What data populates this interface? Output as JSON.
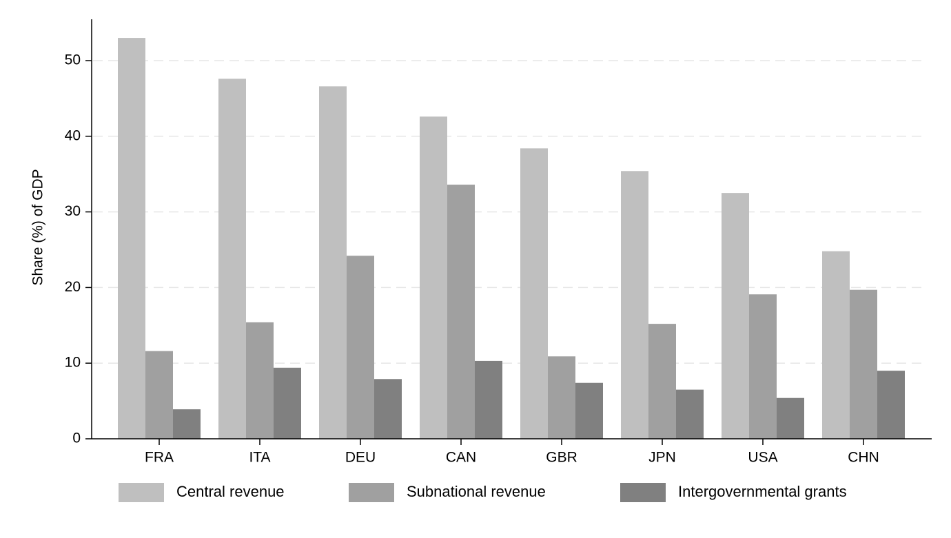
{
  "chart_data": {
    "type": "bar",
    "title": "",
    "xlabel": "",
    "ylabel": "Share (%) of GDP",
    "ylim": [
      0,
      55
    ],
    "yticks": [
      0,
      10,
      20,
      30,
      40,
      50
    ],
    "grid": "horizontal dashed",
    "legend_position": "bottom",
    "categories": [
      "FRA",
      "ITA",
      "DEU",
      "CAN",
      "GBR",
      "JPN",
      "USA",
      "CHN"
    ],
    "series": [
      {
        "name": "Central revenue",
        "color": "#bfbfbf",
        "values": [
          53.0,
          47.6,
          46.6,
          42.6,
          38.4,
          35.4,
          32.5,
          24.8
        ]
      },
      {
        "name": "Subnational revenue",
        "color": "#a0a0a0",
        "values": [
          11.6,
          15.4,
          24.2,
          33.6,
          10.9,
          15.2,
          19.1,
          19.7
        ]
      },
      {
        "name": "Intergovernmental grants",
        "color": "#808080",
        "values": [
          3.9,
          9.4,
          7.9,
          10.3,
          7.4,
          6.5,
          5.4,
          9.0
        ]
      }
    ]
  }
}
